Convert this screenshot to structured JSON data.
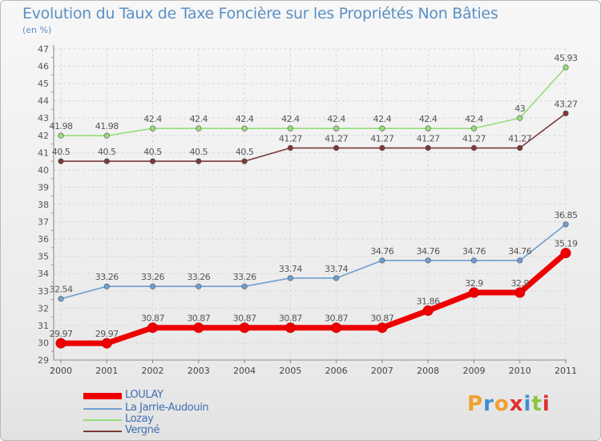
{
  "title": "Evolution du Taux de Taxe Foncière sur les Propriétés Non Bâties",
  "subtitle": "(en %)",
  "logo": {
    "text": "Proxiti",
    "letter_colors": [
      "#f0a030",
      "#3e8fd0",
      "#f0a030",
      "#e03030",
      "#3e8fd0",
      "#8cc63e",
      "#e03030"
    ]
  },
  "chart_data": {
    "type": "line",
    "title": "Evolution du Taux de Taxe Foncière sur les Propriétés Non Bâties",
    "ylabel": "(en %)",
    "xlabel": "",
    "x": [
      "2000",
      "2001",
      "2002",
      "2003",
      "2004",
      "2005",
      "2006",
      "2007",
      "2008",
      "2009",
      "2010",
      "2011"
    ],
    "ylim": [
      29,
      47
    ],
    "yticks": [
      29,
      30,
      31,
      32,
      33,
      34,
      35,
      36,
      37,
      38,
      39,
      40,
      41,
      42,
      43,
      44,
      45,
      46,
      47
    ],
    "grid": true,
    "legend_position": "bottom-left",
    "series": [
      {
        "name": "LOULAY",
        "color": "#ee0000",
        "values": [
          29.97,
          29.97,
          30.87,
          30.87,
          30.87,
          30.87,
          30.87,
          30.87,
          31.86,
          32.9,
          32.9,
          35.19
        ],
        "labels": [
          "29.97",
          "29.97",
          "30.87",
          "30.87",
          "30.87",
          "30.87",
          "30.87",
          "30.87",
          "31.86",
          "32.9",
          "32.9",
          "35.19"
        ],
        "emphasis": true
      },
      {
        "name": "La Jarrie-Audouin",
        "color": "#6d9fcf",
        "values": [
          32.54,
          33.26,
          33.26,
          33.26,
          33.26,
          33.74,
          33.74,
          34.76,
          34.76,
          34.76,
          34.76,
          36.85
        ],
        "labels": [
          "32.54",
          "33.26",
          "33.26",
          "33.26",
          "33.26",
          "33.74",
          "33.74",
          "34.76",
          "34.76",
          "34.76",
          "34.76",
          "36.85"
        ]
      },
      {
        "name": "Lozay",
        "color": "#95dd7c",
        "values": [
          41.98,
          41.98,
          42.4,
          42.4,
          42.4,
          42.4,
          42.4,
          42.4,
          42.4,
          42.4,
          43,
          45.93
        ],
        "labels": [
          "41.98",
          "41.98",
          "42.4",
          "42.4",
          "42.4",
          "42.4",
          "42.4",
          "42.4",
          "42.4",
          "42.4",
          "43",
          "45.93"
        ]
      },
      {
        "name": "Vergné",
        "color": "#7a3a3a",
        "values": [
          40.5,
          40.5,
          40.5,
          40.5,
          40.5,
          41.27,
          41.27,
          41.27,
          41.27,
          41.27,
          41.27,
          43.27
        ],
        "labels": [
          "40.5",
          "40.5",
          "40.5",
          "40.5",
          "40.5",
          "41.27",
          "41.27",
          "41.27",
          "41.27",
          "41.27",
          "41.27",
          "43.27"
        ]
      }
    ]
  }
}
